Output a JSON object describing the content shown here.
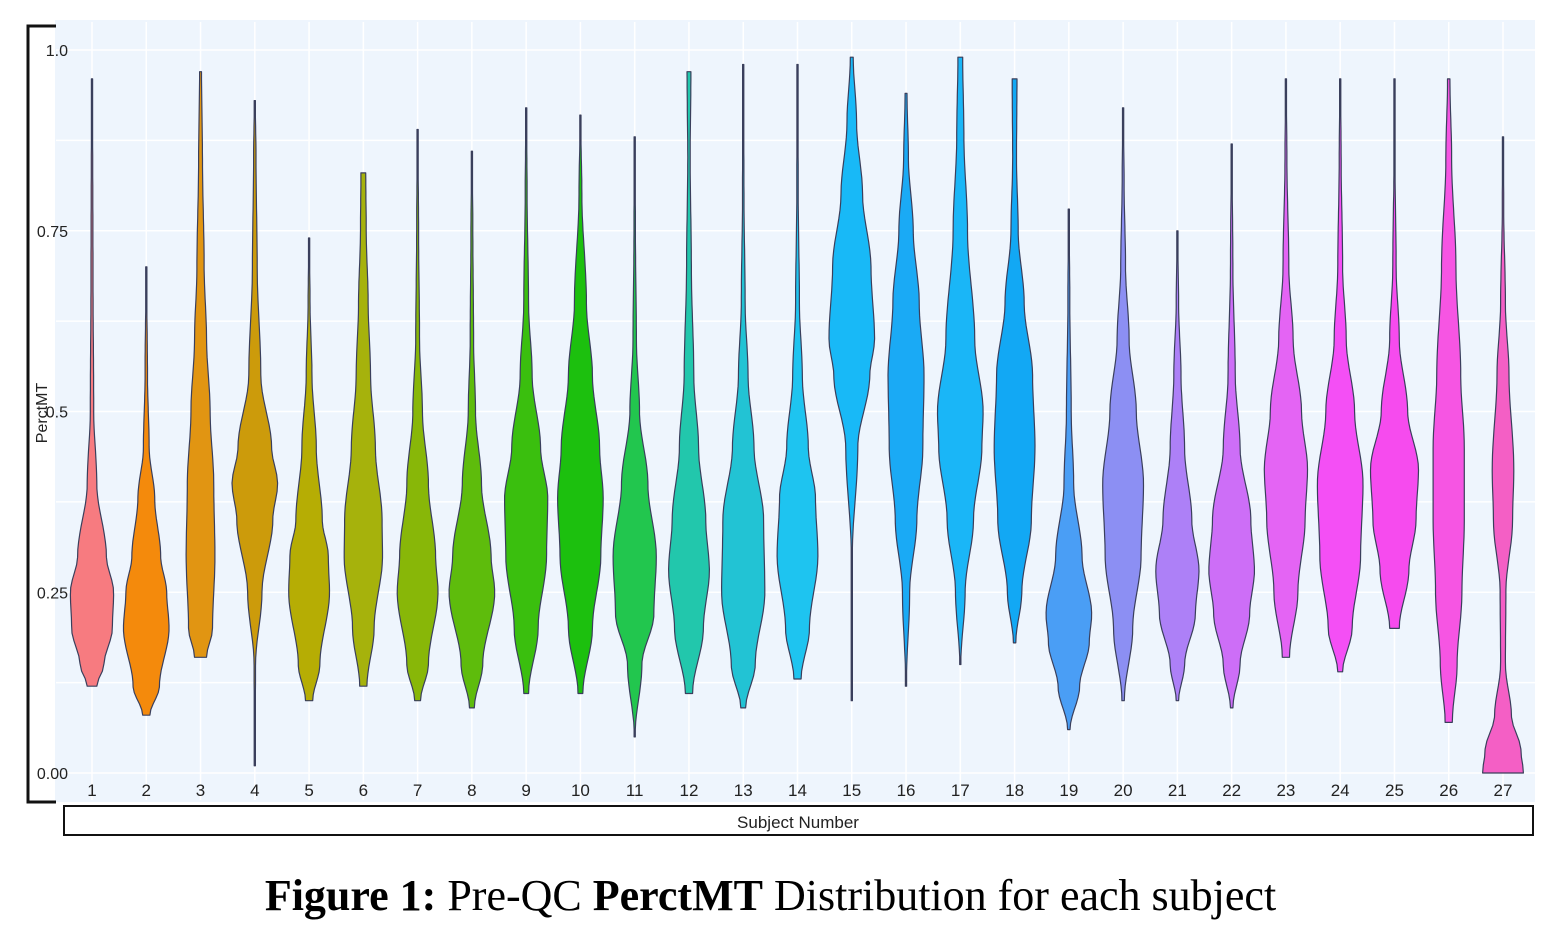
{
  "caption": {
    "prefix": "Figure 1:",
    "part1": " Pre-QC ",
    "metric": "PerctMT",
    "part2": " Distribution for each subject"
  },
  "chart_data": {
    "type": "violin",
    "ylabel": "PerctMT",
    "xlabel": "Subject Number",
    "ylim": [
      0,
      1.0
    ],
    "y_ticks": [
      "0.00",
      "0.25",
      "0.5",
      "0.75",
      "1.0"
    ],
    "y_tick_values": [
      0,
      0.25,
      0.5,
      0.75,
      1.0
    ],
    "grid": true,
    "legend": "none",
    "categories": [
      "1",
      "2",
      "3",
      "4",
      "5",
      "6",
      "7",
      "8",
      "9",
      "10",
      "11",
      "12",
      "13",
      "14",
      "15",
      "16",
      "17",
      "18",
      "19",
      "20",
      "21",
      "22",
      "23",
      "24",
      "25",
      "26",
      "27"
    ],
    "series": [
      {
        "subject": "1",
        "color": "#f77b80",
        "min": 0.12,
        "max": 0.96,
        "profile": [
          [
            0.12,
            0.2
          ],
          [
            0.15,
            0.5
          ],
          [
            0.2,
            0.85
          ],
          [
            0.25,
            0.9
          ],
          [
            0.3,
            0.6
          ],
          [
            0.4,
            0.2
          ],
          [
            0.5,
            0.07
          ],
          [
            0.7,
            0.04
          ],
          [
            0.96,
            0.02
          ]
        ]
      },
      {
        "subject": "2",
        "color": "#f48a0c",
        "min": 0.08,
        "max": 0.7,
        "profile": [
          [
            0.08,
            0.15
          ],
          [
            0.12,
            0.55
          ],
          [
            0.2,
            0.95
          ],
          [
            0.25,
            0.85
          ],
          [
            0.3,
            0.6
          ],
          [
            0.38,
            0.35
          ],
          [
            0.45,
            0.12
          ],
          [
            0.55,
            0.05
          ],
          [
            0.7,
            0.01
          ]
        ]
      },
      {
        "subject": "3",
        "color": "#e19512",
        "min": 0.16,
        "max": 0.97,
        "profile": [
          [
            0.16,
            0.25
          ],
          [
            0.2,
            0.5
          ],
          [
            0.3,
            0.6
          ],
          [
            0.4,
            0.55
          ],
          [
            0.5,
            0.4
          ],
          [
            0.6,
            0.25
          ],
          [
            0.7,
            0.15
          ],
          [
            0.85,
            0.08
          ],
          [
            0.97,
            0.04
          ]
        ]
      },
      {
        "subject": "4",
        "color": "#cc9b0b",
        "min": 0.01,
        "max": 0.93,
        "profile": [
          [
            0.01,
            0.01
          ],
          [
            0.15,
            0.03
          ],
          [
            0.25,
            0.3
          ],
          [
            0.35,
            0.75
          ],
          [
            0.4,
            0.95
          ],
          [
            0.45,
            0.7
          ],
          [
            0.55,
            0.25
          ],
          [
            0.7,
            0.1
          ],
          [
            0.85,
            0.05
          ],
          [
            0.93,
            0.02
          ]
        ]
      },
      {
        "subject": "5",
        "color": "#b6ad04",
        "min": 0.1,
        "max": 0.74,
        "profile": [
          [
            0.1,
            0.15
          ],
          [
            0.15,
            0.45
          ],
          [
            0.25,
            0.85
          ],
          [
            0.3,
            0.8
          ],
          [
            0.35,
            0.55
          ],
          [
            0.45,
            0.3
          ],
          [
            0.55,
            0.12
          ],
          [
            0.65,
            0.04
          ],
          [
            0.74,
            0.01
          ]
        ]
      },
      {
        "subject": "6",
        "color": "#a6b20c",
        "min": 0.12,
        "max": 0.83,
        "profile": [
          [
            0.12,
            0.15
          ],
          [
            0.2,
            0.45
          ],
          [
            0.3,
            0.8
          ],
          [
            0.35,
            0.78
          ],
          [
            0.45,
            0.5
          ],
          [
            0.55,
            0.3
          ],
          [
            0.65,
            0.2
          ],
          [
            0.75,
            0.12
          ],
          [
            0.83,
            0.1
          ]
        ]
      },
      {
        "subject": "7",
        "color": "#88b708",
        "min": 0.1,
        "max": 0.89,
        "profile": [
          [
            0.1,
            0.12
          ],
          [
            0.15,
            0.45
          ],
          [
            0.25,
            0.85
          ],
          [
            0.3,
            0.75
          ],
          [
            0.4,
            0.45
          ],
          [
            0.5,
            0.2
          ],
          [
            0.6,
            0.08
          ],
          [
            0.75,
            0.04
          ],
          [
            0.89,
            0.01
          ]
        ]
      },
      {
        "subject": "8",
        "color": "#5ebc0c",
        "min": 0.09,
        "max": 0.86,
        "profile": [
          [
            0.09,
            0.1
          ],
          [
            0.15,
            0.45
          ],
          [
            0.25,
            0.95
          ],
          [
            0.3,
            0.8
          ],
          [
            0.4,
            0.4
          ],
          [
            0.5,
            0.15
          ],
          [
            0.6,
            0.07
          ],
          [
            0.75,
            0.04
          ],
          [
            0.86,
            0.01
          ]
        ]
      },
      {
        "subject": "9",
        "color": "#3abf0e",
        "min": 0.11,
        "max": 0.92,
        "profile": [
          [
            0.11,
            0.1
          ],
          [
            0.2,
            0.5
          ],
          [
            0.3,
            0.85
          ],
          [
            0.38,
            0.9
          ],
          [
            0.45,
            0.6
          ],
          [
            0.55,
            0.25
          ],
          [
            0.65,
            0.1
          ],
          [
            0.8,
            0.04
          ],
          [
            0.92,
            0.01
          ]
        ]
      },
      {
        "subject": "10",
        "color": "#1cc00e",
        "min": 0.11,
        "max": 0.91,
        "profile": [
          [
            0.11,
            0.1
          ],
          [
            0.2,
            0.5
          ],
          [
            0.3,
            0.85
          ],
          [
            0.38,
            0.95
          ],
          [
            0.45,
            0.8
          ],
          [
            0.55,
            0.5
          ],
          [
            0.65,
            0.25
          ],
          [
            0.8,
            0.06
          ],
          [
            0.91,
            0.01
          ]
        ]
      },
      {
        "subject": "11",
        "color": "#22c64e",
        "min": 0.05,
        "max": 0.88,
        "profile": [
          [
            0.05,
            0.01
          ],
          [
            0.15,
            0.3
          ],
          [
            0.22,
            0.8
          ],
          [
            0.3,
            0.9
          ],
          [
            0.4,
            0.55
          ],
          [
            0.5,
            0.2
          ],
          [
            0.6,
            0.07
          ],
          [
            0.75,
            0.03
          ],
          [
            0.88,
            0.01
          ]
        ]
      },
      {
        "subject": "12",
        "color": "#22c7ac",
        "min": 0.11,
        "max": 0.97,
        "profile": [
          [
            0.11,
            0.15
          ],
          [
            0.2,
            0.6
          ],
          [
            0.28,
            0.85
          ],
          [
            0.35,
            0.7
          ],
          [
            0.45,
            0.4
          ],
          [
            0.55,
            0.2
          ],
          [
            0.7,
            0.1
          ],
          [
            0.85,
            0.05
          ],
          [
            0.97,
            0.08
          ]
        ]
      },
      {
        "subject": "13",
        "color": "#22c3d4",
        "min": 0.09,
        "max": 0.98,
        "profile": [
          [
            0.09,
            0.1
          ],
          [
            0.15,
            0.5
          ],
          [
            0.25,
            0.9
          ],
          [
            0.35,
            0.85
          ],
          [
            0.45,
            0.45
          ],
          [
            0.55,
            0.2
          ],
          [
            0.65,
            0.08
          ],
          [
            0.8,
            0.03
          ],
          [
            0.98,
            0.01
          ]
        ]
      },
      {
        "subject": "14",
        "color": "#1ec4f0",
        "min": 0.13,
        "max": 0.98,
        "profile": [
          [
            0.13,
            0.15
          ],
          [
            0.2,
            0.5
          ],
          [
            0.3,
            0.85
          ],
          [
            0.38,
            0.75
          ],
          [
            0.45,
            0.45
          ],
          [
            0.55,
            0.2
          ],
          [
            0.65,
            0.08
          ],
          [
            0.8,
            0.03
          ],
          [
            0.98,
            0.01
          ]
        ]
      },
      {
        "subject": "15",
        "color": "#18b9f7",
        "min": 0.1,
        "max": 0.99,
        "profile": [
          [
            0.1,
            0.01
          ],
          [
            0.3,
            0.02
          ],
          [
            0.45,
            0.25
          ],
          [
            0.55,
            0.75
          ],
          [
            0.6,
            0.95
          ],
          [
            0.7,
            0.8
          ],
          [
            0.8,
            0.45
          ],
          [
            0.9,
            0.2
          ],
          [
            0.99,
            0.06
          ]
        ]
      },
      {
        "subject": "16",
        "color": "#1aaaf5",
        "min": 0.12,
        "max": 0.94,
        "profile": [
          [
            0.12,
            0.01
          ],
          [
            0.25,
            0.15
          ],
          [
            0.35,
            0.45
          ],
          [
            0.45,
            0.7
          ],
          [
            0.55,
            0.75
          ],
          [
            0.65,
            0.55
          ],
          [
            0.75,
            0.3
          ],
          [
            0.85,
            0.1
          ],
          [
            0.94,
            0.04
          ]
        ]
      },
      {
        "subject": "17",
        "color": "#1ab6f7",
        "min": 0.15,
        "max": 0.99,
        "profile": [
          [
            0.15,
            0.02
          ],
          [
            0.25,
            0.2
          ],
          [
            0.35,
            0.55
          ],
          [
            0.45,
            0.9
          ],
          [
            0.5,
            0.95
          ],
          [
            0.6,
            0.6
          ],
          [
            0.75,
            0.3
          ],
          [
            0.88,
            0.15
          ],
          [
            0.99,
            0.1
          ]
        ]
      },
      {
        "subject": "18",
        "color": "#12a8f4",
        "min": 0.18,
        "max": 0.96,
        "profile": [
          [
            0.18,
            0.05
          ],
          [
            0.25,
            0.3
          ],
          [
            0.35,
            0.7
          ],
          [
            0.45,
            0.85
          ],
          [
            0.55,
            0.75
          ],
          [
            0.65,
            0.4
          ],
          [
            0.75,
            0.15
          ],
          [
            0.85,
            0.08
          ],
          [
            0.96,
            0.1
          ]
        ]
      },
      {
        "subject": "19",
        "color": "#4a9ef5",
        "min": 0.06,
        "max": 0.78,
        "profile": [
          [
            0.06,
            0.05
          ],
          [
            0.12,
            0.45
          ],
          [
            0.18,
            0.85
          ],
          [
            0.22,
            0.95
          ],
          [
            0.3,
            0.55
          ],
          [
            0.4,
            0.2
          ],
          [
            0.5,
            0.1
          ],
          [
            0.65,
            0.04
          ],
          [
            0.78,
            0.01
          ]
        ]
      },
      {
        "subject": "20",
        "color": "#8c8ff3",
        "min": 0.1,
        "max": 0.92,
        "profile": [
          [
            0.1,
            0.05
          ],
          [
            0.2,
            0.4
          ],
          [
            0.3,
            0.75
          ],
          [
            0.4,
            0.85
          ],
          [
            0.5,
            0.55
          ],
          [
            0.6,
            0.25
          ],
          [
            0.7,
            0.1
          ],
          [
            0.82,
            0.04
          ],
          [
            0.92,
            0.01
          ]
        ]
      },
      {
        "subject": "21",
        "color": "#ad80f7",
        "min": 0.1,
        "max": 0.75,
        "profile": [
          [
            0.1,
            0.05
          ],
          [
            0.15,
            0.3
          ],
          [
            0.22,
            0.75
          ],
          [
            0.28,
            0.9
          ],
          [
            0.35,
            0.6
          ],
          [
            0.45,
            0.3
          ],
          [
            0.55,
            0.15
          ],
          [
            0.65,
            0.05
          ],
          [
            0.75,
            0.01
          ]
        ]
      },
      {
        "subject": "22",
        "color": "#cd6ef7",
        "min": 0.09,
        "max": 0.87,
        "profile": [
          [
            0.09,
            0.05
          ],
          [
            0.15,
            0.35
          ],
          [
            0.22,
            0.75
          ],
          [
            0.28,
            0.95
          ],
          [
            0.35,
            0.8
          ],
          [
            0.45,
            0.35
          ],
          [
            0.55,
            0.15
          ],
          [
            0.7,
            0.05
          ],
          [
            0.87,
            0.01
          ]
        ]
      },
      {
        "subject": "23",
        "color": "#e464f4",
        "min": 0.16,
        "max": 0.96,
        "profile": [
          [
            0.16,
            0.15
          ],
          [
            0.25,
            0.5
          ],
          [
            0.35,
            0.8
          ],
          [
            0.42,
            0.9
          ],
          [
            0.5,
            0.65
          ],
          [
            0.6,
            0.3
          ],
          [
            0.7,
            0.12
          ],
          [
            0.85,
            0.04
          ],
          [
            0.96,
            0.01
          ]
        ]
      },
      {
        "subject": "24",
        "color": "#f44ff5",
        "min": 0.14,
        "max": 0.96,
        "profile": [
          [
            0.14,
            0.1
          ],
          [
            0.2,
            0.5
          ],
          [
            0.3,
            0.85
          ],
          [
            0.4,
            0.95
          ],
          [
            0.5,
            0.6
          ],
          [
            0.6,
            0.25
          ],
          [
            0.7,
            0.1
          ],
          [
            0.85,
            0.04
          ],
          [
            0.96,
            0.01
          ]
        ]
      },
      {
        "subject": "25",
        "color": "#f64bee",
        "min": 0.2,
        "max": 0.96,
        "profile": [
          [
            0.2,
            0.2
          ],
          [
            0.28,
            0.6
          ],
          [
            0.35,
            0.9
          ],
          [
            0.42,
            1.0
          ],
          [
            0.5,
            0.55
          ],
          [
            0.6,
            0.2
          ],
          [
            0.7,
            0.07
          ],
          [
            0.85,
            0.02
          ],
          [
            0.96,
            0.01
          ]
        ]
      },
      {
        "subject": "26",
        "color": "#f655e3",
        "min": 0.07,
        "max": 0.96,
        "profile": [
          [
            0.07,
            0.15
          ],
          [
            0.15,
            0.35
          ],
          [
            0.25,
            0.55
          ],
          [
            0.35,
            0.65
          ],
          [
            0.45,
            0.65
          ],
          [
            0.55,
            0.5
          ],
          [
            0.7,
            0.3
          ],
          [
            0.85,
            0.12
          ],
          [
            0.96,
            0.05
          ]
        ]
      },
      {
        "subject": "27",
        "color": "#f45fc5",
        "min": 0.0,
        "max": 0.88,
        "profile": [
          [
            0.0,
            0.85
          ],
          [
            0.03,
            0.75
          ],
          [
            0.08,
            0.35
          ],
          [
            0.15,
            0.1
          ],
          [
            0.25,
            0.12
          ],
          [
            0.35,
            0.4
          ],
          [
            0.42,
            0.45
          ],
          [
            0.55,
            0.25
          ],
          [
            0.65,
            0.1
          ],
          [
            0.78,
            0.03
          ],
          [
            0.88,
            0.01
          ]
        ]
      }
    ]
  }
}
